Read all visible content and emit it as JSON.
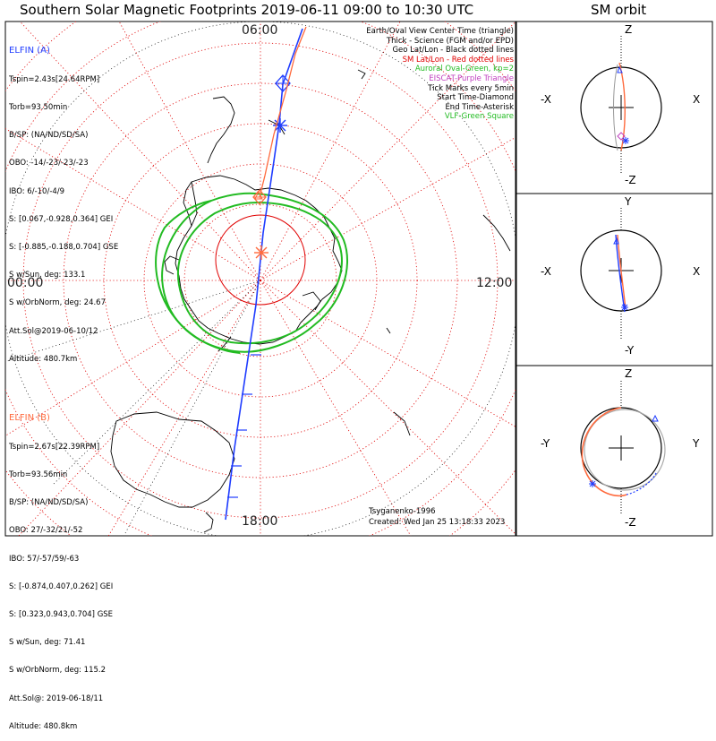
{
  "title": "Southern Solar Magnetic Footprints 2019-06-11 09:00 to 10:30 UTC",
  "side_title": "SM orbit",
  "hour_labels": {
    "top": "06:00",
    "left": "00:00",
    "right": "12:00",
    "bottom": "18:00"
  },
  "elfin_a": {
    "name": "ELFIN (A)",
    "color": "#1f3cff",
    "lines": [
      "Tspin=2.43s[24.64RPM]",
      "Torb=93.50min",
      "B/SP: (NA/ND/SD/SA)",
      "OBO: -14/-23/-23/-23",
      "IBO: 6/-10/-4/9",
      "S: [0.067,-0.928,0.364] GEI",
      "S: [-0.885,-0.188,0.704] GSE",
      "S w/Sun, deg: 133.1",
      "S w/OrbNorm, deg: 24.67",
      "Att.Sol@2019-06-10/12",
      "Altitude: 480.7km"
    ]
  },
  "elfin_b": {
    "name": "ELFIN (B)",
    "color": "#ff6a3d",
    "lines": [
      "Tspin=2.67s[22.39RPM]",
      "Torb=93.56min",
      "B/SP: (NA/ND/SD/SA)",
      "OBO: 27/-32/21/-52",
      "IBO: 57/-57/59/-63",
      "S: [-0.874,0.407,0.262] GEI",
      "S: [0.323,0.943,0.704] GSE",
      "S w/Sun, deg: 71.41",
      "S w/OrbNorm, deg: 115.2",
      "Att.Sol@: 2019-06-18/11",
      "Altitude: 480.8km"
    ]
  },
  "legend": [
    {
      "text": "Earth/Oval View Center Time (triangle)",
      "color": "#000000"
    },
    {
      "text": "Thick - Science (FGM and/or EPD)",
      "color": "#000000"
    },
    {
      "text": "Geo Lat/Lon - Black dotted lines",
      "color": "#000000"
    },
    {
      "text": "SM Lat/Lon - Red dotted lines",
      "color": "#e00000"
    },
    {
      "text": "Auroral Oval-Green, kp=2",
      "color": "#22bb22"
    },
    {
      "text": "EISCAT-Purple Triangle",
      "color": "#c040c0"
    },
    {
      "text": "Tick Marks every 5min",
      "color": "#000000"
    },
    {
      "text": "Start Time-Diamond",
      "color": "#000000"
    },
    {
      "text": "End Time-Asterisk",
      "color": "#000000"
    },
    {
      "text": "VLF-Green Square",
      "color": "#22bb22"
    }
  ],
  "credit_author": "Tsyganenko-1996",
  "credit_created": "Created: Wed Jan 25 13:18:33 2023",
  "orbit_panels": [
    {
      "top": "Z",
      "bottom": "-Z",
      "left": "-X",
      "right": "X"
    },
    {
      "top": "Y",
      "bottom": "-Y",
      "left": "-X",
      "right": "X"
    },
    {
      "top": "Z",
      "bottom": "-Z",
      "left": "-Y",
      "right": "Y"
    }
  ],
  "colors": {
    "auroral_oval": "#22bb22",
    "sm_grid": "#e00000",
    "geo_grid": "#000000",
    "trace_a": "#1f3cff",
    "trace_b": "#ff6a3d"
  }
}
